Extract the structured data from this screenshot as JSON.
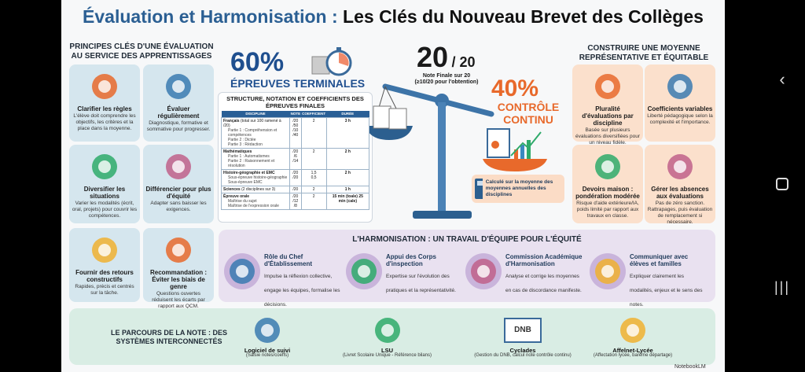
{
  "title": {
    "part1": "Évaluation et Harmonisation :",
    "part2": "Les Clés du Nouveau Brevet des Collèges"
  },
  "left": {
    "heading": "PRINCIPES CLÉS D'UNE ÉVALUATION AU SERVICE DES APPRENTISSAGES",
    "cards": [
      {
        "icon": "target-magnifier-icon",
        "title": "Clarifier les règles",
        "text": "L'élève doit comprendre les objectifs, les critères et la place dans la moyenne."
      },
      {
        "icon": "calendar-clock-icon",
        "title": "Évaluer régulièrement",
        "text": "Diagnostique, formative et sommative pour progresser."
      },
      {
        "icon": "shapes-icon",
        "title": "Diversifier les situations",
        "text": "Varier les modalités (écrit, oral, projets) pour couvrir les compétences."
      },
      {
        "icon": "people-ladder-icon",
        "title": "Différencier pour plus d'équité",
        "text": "Adapter sans baisser les exigences."
      },
      {
        "icon": "speech-bubbles-icon",
        "title": "Fournir des retours constructifs",
        "text": "Rapides, précis et centrés sur la tâche."
      },
      {
        "icon": "gender-symbol-icon",
        "title": "Recommandation : Éviter les biais de genre",
        "text": "Questions ouvertes réduisent les écarts par rapport aux QCM."
      }
    ]
  },
  "center": {
    "pct_final": "60%",
    "final_label": "ÉPREUVES TERMINALES",
    "score": "20",
    "score_max": "/ 20",
    "score_label": "Note Finale sur 20",
    "score_sub": "(≥10/20 pour l'obtention)",
    "pct_cc": "40%",
    "cc_label": "CONTRÔLE CONTINU",
    "calc_text": "Calculé sur la moyenne des moyennes annuelles des disciplines",
    "weight_final": 60,
    "weight_cc": 40
  },
  "table": {
    "heading": "STRUCTURE, NOTATION ET COEFFICIENTS DES ÉPREUVES FINALES",
    "columns": [
      "DISCIPLINE",
      "NOTE",
      "COEFFICIENT",
      "DURÉE"
    ],
    "rows": [
      {
        "discipline": "Français",
        "detail": "(total sur 100 ramené à /20)",
        "note": "/20",
        "coef": "2",
        "duree": "3 h",
        "sub": [
          [
            "Partie 1 : Compréhension et compétences",
            "/50",
            ""
          ],
          [
            "Partie 2 : Dictée",
            "/10",
            ""
          ],
          [
            "Partie 3 : Rédaction",
            "/40",
            ""
          ]
        ]
      },
      {
        "discipline": "Mathématiques",
        "detail": "",
        "note": "/20",
        "coef": "2",
        "duree": "2 h",
        "sub": [
          [
            "Partie 1 : Automatismes",
            "/6",
            ""
          ],
          [
            "Partie 2 : Raisonnement et résolution",
            "/14",
            ""
          ]
        ]
      },
      {
        "discipline": "Histoire-géographie et EMC",
        "detail": "",
        "note": "",
        "coef": "",
        "duree": "2 h",
        "sub": [
          [
            "Sous-épreuve histoire-géographie",
            "/20",
            "1,5"
          ],
          [
            "Sous-épreuve EMC",
            "/20",
            "0,5"
          ]
        ]
      },
      {
        "discipline": "Sciences",
        "detail": "(2 disciplines sur 3)",
        "note": "/20",
        "coef": "2",
        "duree": "1 h",
        "sub": []
      },
      {
        "discipline": "Épreuve orale",
        "detail": "",
        "note": "/20",
        "coef": "2",
        "duree": "15 min (toale) 25 min (cale)",
        "sub": [
          [
            "Maîtrise du sujet",
            "/12",
            ""
          ],
          [
            "Maîtrise de l'expression orale",
            "/8",
            ""
          ]
        ]
      }
    ]
  },
  "right": {
    "heading": "CONSTRUIRE UNE MOYENNE REPRÉSENTATIVE ET ÉQUITABLE",
    "cards": [
      {
        "icon": "test-papers-icon",
        "title": "Pluralité d'évaluations par discipline",
        "text": "Basée sur plusieurs évaluations diversifiées pour un niveau fidèle."
      },
      {
        "icon": "balance-scale-icon",
        "title": "Coefficients variables",
        "text": "Liberté pédagogique selon la complexité et l'importance."
      },
      {
        "icon": "house-warning-icon",
        "title": "Devoirs maison : pondération modérée",
        "text": "Risque d'aide extérieure/IA, poids limité par rapport aux travaux en classe."
      },
      {
        "icon": "clock-question-icon",
        "title": "Gérer les absences aux évaluations",
        "text": "Pas de zéro sanction. Rattrapages, puis évaluation de remplacement si nécessaire."
      }
    ]
  },
  "harmonisation": {
    "heading": "L'HARMONISATION : UN TRAVAIL D'ÉQUIPE POUR L'ÉQUITÉ",
    "items": [
      {
        "icon": "school-principal-icon",
        "title": "Rôle du Chef d'Établissement",
        "text": "Impulse la réflexion collective, engage les équipes, formalise les décisions."
      },
      {
        "icon": "inspectors-icon",
        "title": "Appui des Corps d'inspection",
        "text": "Expertise sur l'évolution des pratiques et la représentativité."
      },
      {
        "icon": "commission-meeting-icon",
        "title": "Commission Académique d'Harmonisation",
        "text": "Analyse et corrige les moyennes en cas de discordance manifeste."
      },
      {
        "icon": "families-chat-icon",
        "title": "Communiquer avec élèves et familles",
        "text": "Expliquer clairement les modalités, enjeux et le sens des notes."
      }
    ]
  },
  "systems": {
    "heading": "LE PARCOURS DE LA NOTE : DES SYSTÈMES INTERCONNECTÉS",
    "items": [
      {
        "icon": "monitor-teacher-icon",
        "title": "Logiciel de suivi",
        "text": "(Saisie notes/coeffs)"
      },
      {
        "icon": "cloud-database-icon",
        "title": "LSU",
        "text": "(Livret Scolaire Unique - Référence bilans)"
      },
      {
        "icon": "diploma-icon",
        "title": "Cyclades",
        "badge": "DNB",
        "text": "(Gestion du DNB, calcul note contrôle continu)"
      },
      {
        "icon": "school-arrows-icon",
        "title": "Affelnet-Lycée",
        "text": "(Affectation lycée, barème départage)"
      }
    ]
  },
  "watermark": "NotebookLM",
  "colors": {
    "blue": "#2b5f93",
    "orange": "#e8692b",
    "left_cards": "#d5e6ee",
    "right_cards": "#fbe0cc",
    "harmonisation": "#e9e1f0",
    "systems": "#d9ede4"
  }
}
